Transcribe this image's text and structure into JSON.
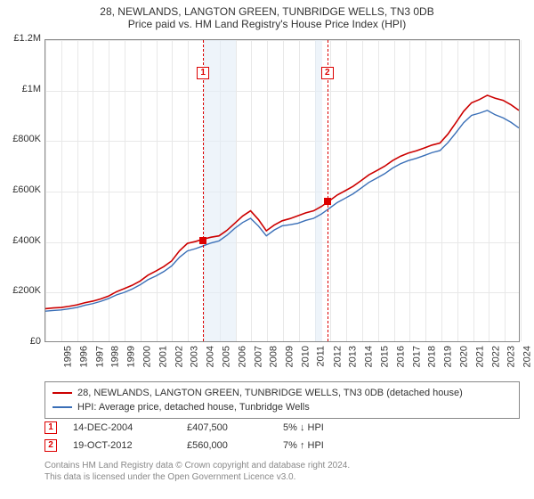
{
  "chart": {
    "type": "line",
    "title_line1": "28, NEWLANDS, LANGTON GREEN, TUNBRIDGE WELLS, TN3 0DB",
    "title_line2": "Price paid vs. HM Land Registry's House Price Index (HPI)",
    "title_fontsize": 12,
    "background_color": "#ffffff",
    "plot_border_color": "#888888",
    "grid_color": "#e8e8e8",
    "shade_color": "#e3edf7",
    "ylim": [
      0,
      1200000
    ],
    "ytick_step": 200000,
    "yticks": [
      "£0",
      "£200K",
      "£400K",
      "£600K",
      "£800K",
      "£1M",
      "£1.2M"
    ],
    "x_years": [
      1995,
      1996,
      1997,
      1998,
      1999,
      2000,
      2001,
      2002,
      2003,
      2004,
      2005,
      2006,
      2007,
      2008,
      2009,
      2010,
      2011,
      2012,
      2013,
      2014,
      2015,
      2016,
      2017,
      2018,
      2019,
      2020,
      2021,
      2022,
      2023,
      2024,
      2025
    ],
    "shade_ranges": [
      [
        2005,
        2007
      ],
      [
        2012,
        2012.5
      ]
    ],
    "series": [
      {
        "name": "property",
        "color": "#cc0000",
        "width": 1.6,
        "values": [
          130000,
          135000,
          145000,
          160000,
          180000,
          210000,
          240000,
          280000,
          320000,
          390000,
          407000,
          420000,
          470000,
          520000,
          440000,
          480000,
          500000,
          520000,
          560000,
          600000,
          640000,
          680000,
          720000,
          750000,
          770000,
          790000,
          870000,
          950000,
          980000,
          960000,
          920000
        ]
      },
      {
        "name": "hpi",
        "color": "#3a6fb7",
        "width": 1.4,
        "values": [
          120000,
          125000,
          135000,
          150000,
          170000,
          195000,
          225000,
          260000,
          300000,
          360000,
          380000,
          400000,
          450000,
          490000,
          420000,
          460000,
          470000,
          490000,
          530000,
          570000,
          610000,
          650000,
          690000,
          720000,
          740000,
          760000,
          830000,
          900000,
          920000,
          890000,
          850000
        ]
      }
    ],
    "markers": [
      {
        "label": "1",
        "year": 2004.95,
        "value": 407500
      },
      {
        "label": "2",
        "year": 2012.8,
        "value": 560000
      }
    ]
  },
  "legend": {
    "items": [
      {
        "color": "#cc0000",
        "label": "28, NEWLANDS, LANGTON GREEN, TUNBRIDGE WELLS, TN3 0DB (detached house)"
      },
      {
        "color": "#3a6fb7",
        "label": "HPI: Average price, detached house, Tunbridge Wells"
      }
    ]
  },
  "sales": [
    {
      "marker": "1",
      "date": "14-DEC-2004",
      "price": "£407,500",
      "hpi": "5% ↓ HPI"
    },
    {
      "marker": "2",
      "date": "19-OCT-2012",
      "price": "£560,000",
      "hpi": "7% ↑ HPI"
    }
  ],
  "footer": {
    "line1": "Contains HM Land Registry data © Crown copyright and database right 2024.",
    "line2": "This data is licensed under the Open Government Licence v3.0."
  }
}
